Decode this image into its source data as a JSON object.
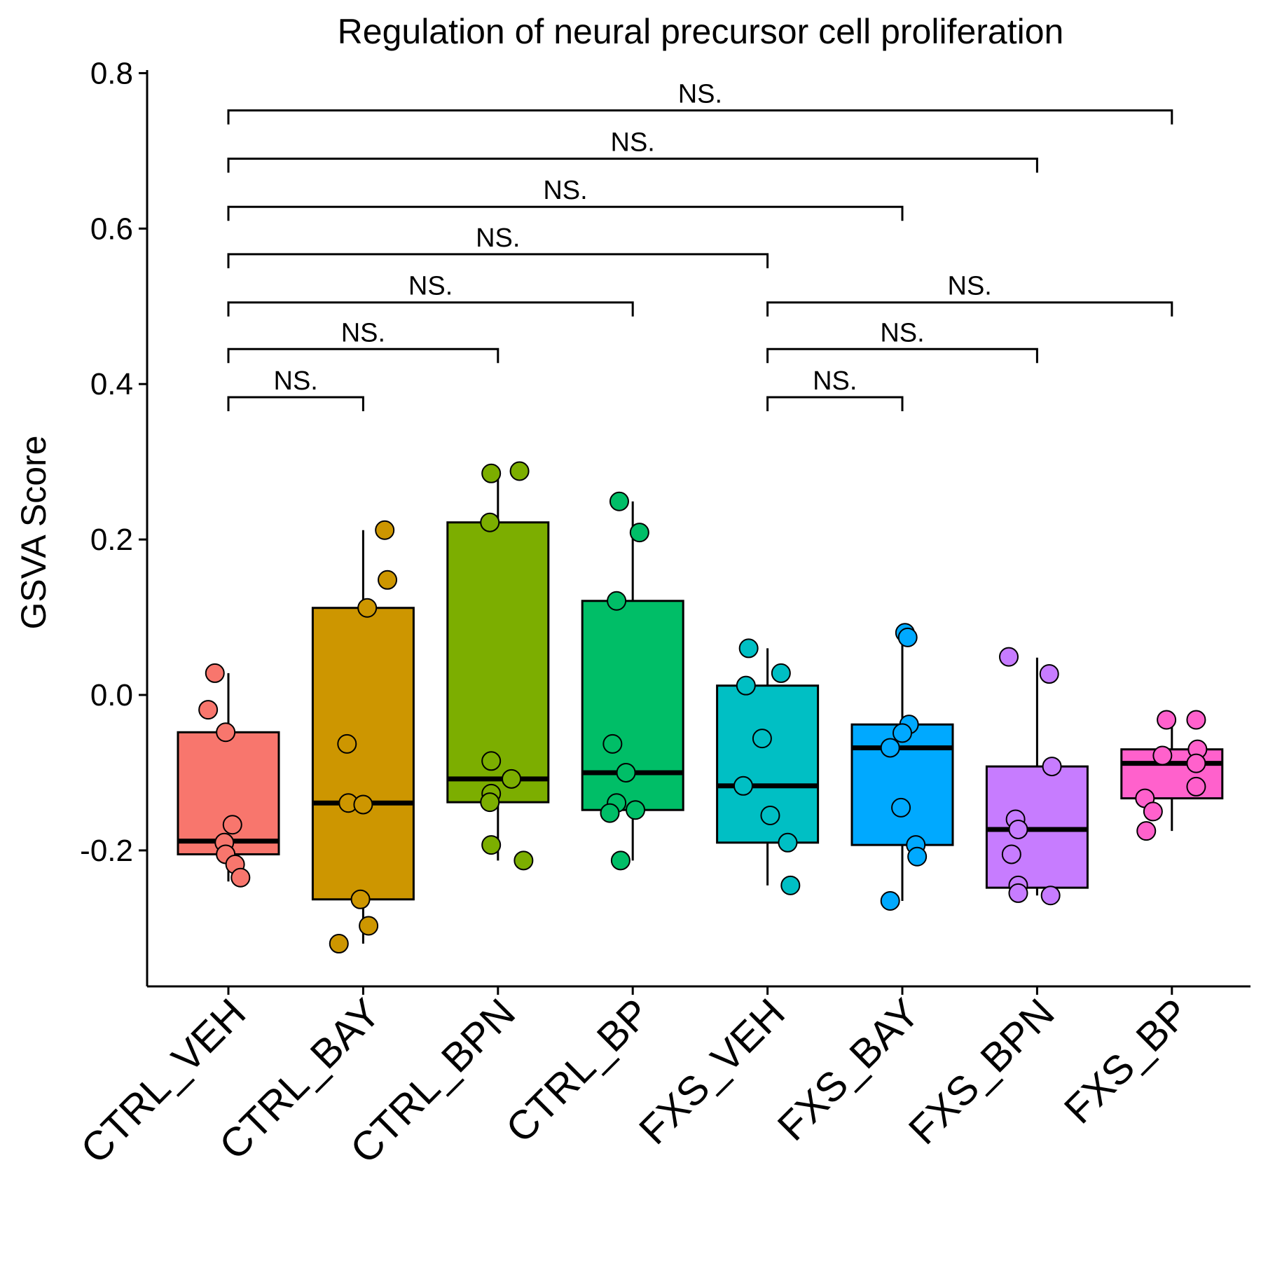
{
  "chart_data": {
    "type": "boxplot",
    "title": "Regulation of neural precursor cell proliferation",
    "xlabel": "",
    "ylabel": "GSVA Score",
    "ylim": [
      -0.37,
      0.8
    ],
    "yticks": [
      -0.2,
      0.0,
      0.2,
      0.4,
      0.6,
      0.8
    ],
    "ytick_labels": [
      "-0.2",
      "0.0",
      "0.2",
      "0.4",
      "0.6",
      "0.8"
    ],
    "grid": false,
    "legend": "none",
    "categories": [
      "CTRL_VEH",
      "CTRL_BAY",
      "CTRL_BPN",
      "CTRL_BP",
      "FXS_VEH",
      "FXS_BAY",
      "FXS_BPN",
      "FXS_BP"
    ],
    "colors": [
      "#F8766D",
      "#CD9600",
      "#7CAE00",
      "#00BE67",
      "#00BFC4",
      "#00A9FF",
      "#C77CFF",
      "#FF61CC"
    ],
    "boxes": [
      {
        "group": "CTRL_VEH",
        "whisker_low": -0.24,
        "q1": -0.205,
        "median": -0.188,
        "q3": -0.048,
        "whisker_high": 0.028
      },
      {
        "group": "CTRL_BAY",
        "whisker_low": -0.32,
        "q1": -0.263,
        "median": -0.139,
        "q3": 0.112,
        "whisker_high": 0.212
      },
      {
        "group": "CTRL_BPN",
        "whisker_low": -0.213,
        "q1": -0.138,
        "median": -0.108,
        "q3": 0.222,
        "whisker_high": 0.288
      },
      {
        "group": "CTRL_BP",
        "whisker_low": -0.213,
        "q1": -0.148,
        "median": -0.1,
        "q3": 0.121,
        "whisker_high": 0.249
      },
      {
        "group": "FXS_VEH",
        "whisker_low": -0.245,
        "q1": -0.19,
        "median": -0.117,
        "q3": 0.012,
        "whisker_high": 0.06
      },
      {
        "group": "FXS_BAY",
        "whisker_low": -0.265,
        "q1": -0.193,
        "median": -0.068,
        "q3": -0.038,
        "whisker_high": 0.078
      },
      {
        "group": "FXS_BPN",
        "whisker_low": -0.258,
        "q1": -0.248,
        "median": -0.173,
        "q3": -0.092,
        "whisker_high": 0.048
      },
      {
        "group": "FXS_BP",
        "whisker_low": -0.175,
        "q1": -0.133,
        "median": -0.088,
        "q3": -0.07,
        "whisker_high": -0.032
      }
    ],
    "points": [
      {
        "group": 0,
        "x": -0.1,
        "y": 0.028
      },
      {
        "group": 0,
        "x": -0.15,
        "y": -0.019
      },
      {
        "group": 0,
        "x": -0.02,
        "y": -0.048
      },
      {
        "group": 0,
        "x": 0.03,
        "y": -0.167
      },
      {
        "group": 0,
        "x": -0.03,
        "y": -0.19
      },
      {
        "group": 0,
        "x": -0.02,
        "y": -0.205
      },
      {
        "group": 0,
        "x": 0.05,
        "y": -0.218
      },
      {
        "group": 0,
        "x": 0.09,
        "y": -0.235
      },
      {
        "group": 1,
        "x": 0.16,
        "y": 0.212
      },
      {
        "group": 1,
        "x": 0.18,
        "y": 0.148
      },
      {
        "group": 1,
        "x": 0.03,
        "y": 0.112
      },
      {
        "group": 1,
        "x": -0.12,
        "y": -0.063
      },
      {
        "group": 1,
        "x": -0.11,
        "y": -0.139
      },
      {
        "group": 1,
        "x": 0.0,
        "y": -0.141
      },
      {
        "group": 1,
        "x": -0.02,
        "y": -0.263
      },
      {
        "group": 1,
        "x": 0.04,
        "y": -0.297
      },
      {
        "group": 1,
        "x": -0.18,
        "y": -0.32
      },
      {
        "group": 2,
        "x": -0.05,
        "y": 0.285
      },
      {
        "group": 2,
        "x": 0.16,
        "y": 0.288
      },
      {
        "group": 2,
        "x": -0.06,
        "y": 0.222
      },
      {
        "group": 2,
        "x": -0.05,
        "y": -0.085
      },
      {
        "group": 2,
        "x": 0.1,
        "y": -0.108
      },
      {
        "group": 2,
        "x": -0.05,
        "y": -0.127
      },
      {
        "group": 2,
        "x": -0.06,
        "y": -0.138
      },
      {
        "group": 2,
        "x": -0.05,
        "y": -0.193
      },
      {
        "group": 2,
        "x": 0.19,
        "y": -0.213
      },
      {
        "group": 3,
        "x": -0.1,
        "y": 0.249
      },
      {
        "group": 3,
        "x": 0.05,
        "y": 0.209
      },
      {
        "group": 3,
        "x": -0.12,
        "y": 0.121
      },
      {
        "group": 3,
        "x": -0.15,
        "y": -0.063
      },
      {
        "group": 3,
        "x": -0.05,
        "y": -0.1
      },
      {
        "group": 3,
        "x": -0.12,
        "y": -0.139
      },
      {
        "group": 3,
        "x": 0.02,
        "y": -0.148
      },
      {
        "group": 3,
        "x": -0.17,
        "y": -0.152
      },
      {
        "group": 3,
        "x": -0.09,
        "y": -0.213
      },
      {
        "group": 4,
        "x": -0.14,
        "y": 0.06
      },
      {
        "group": 4,
        "x": 0.1,
        "y": 0.028
      },
      {
        "group": 4,
        "x": -0.16,
        "y": 0.012
      },
      {
        "group": 4,
        "x": -0.04,
        "y": -0.056
      },
      {
        "group": 4,
        "x": -0.18,
        "y": -0.117
      },
      {
        "group": 4,
        "x": 0.02,
        "y": -0.155
      },
      {
        "group": 4,
        "x": 0.15,
        "y": -0.19
      },
      {
        "group": 4,
        "x": 0.17,
        "y": -0.245
      },
      {
        "group": 5,
        "x": 0.02,
        "y": 0.08
      },
      {
        "group": 5,
        "x": 0.04,
        "y": 0.074
      },
      {
        "group": 5,
        "x": 0.05,
        "y": -0.038
      },
      {
        "group": 5,
        "x": 0.0,
        "y": -0.049
      },
      {
        "group": 5,
        "x": -0.09,
        "y": -0.068
      },
      {
        "group": 5,
        "x": -0.01,
        "y": -0.145
      },
      {
        "group": 5,
        "x": 0.1,
        "y": -0.193
      },
      {
        "group": 5,
        "x": 0.11,
        "y": -0.208
      },
      {
        "group": 5,
        "x": -0.09,
        "y": -0.265
      },
      {
        "group": 6,
        "x": -0.21,
        "y": 0.049
      },
      {
        "group": 6,
        "x": 0.09,
        "y": 0.027
      },
      {
        "group": 6,
        "x": 0.11,
        "y": -0.092
      },
      {
        "group": 6,
        "x": -0.16,
        "y": -0.16
      },
      {
        "group": 6,
        "x": -0.14,
        "y": -0.173
      },
      {
        "group": 6,
        "x": -0.19,
        "y": -0.205
      },
      {
        "group": 6,
        "x": -0.14,
        "y": -0.245
      },
      {
        "group": 6,
        "x": -0.14,
        "y": -0.255
      },
      {
        "group": 6,
        "x": 0.1,
        "y": -0.258
      },
      {
        "group": 7,
        "x": -0.04,
        "y": -0.032
      },
      {
        "group": 7,
        "x": 0.18,
        "y": -0.032
      },
      {
        "group": 7,
        "x": 0.19,
        "y": -0.07
      },
      {
        "group": 7,
        "x": -0.07,
        "y": -0.078
      },
      {
        "group": 7,
        "x": 0.18,
        "y": -0.088
      },
      {
        "group": 7,
        "x": 0.18,
        "y": -0.118
      },
      {
        "group": 7,
        "x": -0.2,
        "y": -0.133
      },
      {
        "group": 7,
        "x": -0.14,
        "y": -0.15
      },
      {
        "group": 7,
        "x": -0.19,
        "y": -0.175
      }
    ],
    "comparisons": [
      {
        "from": 0,
        "to": 1,
        "y": 0.383,
        "label": "NS."
      },
      {
        "from": 0,
        "to": 2,
        "y": 0.445,
        "label": "NS."
      },
      {
        "from": 0,
        "to": 3,
        "y": 0.505,
        "label": "NS."
      },
      {
        "from": 0,
        "to": 4,
        "y": 0.567,
        "label": "NS."
      },
      {
        "from": 0,
        "to": 5,
        "y": 0.628,
        "label": "NS."
      },
      {
        "from": 0,
        "to": 6,
        "y": 0.69,
        "label": "NS."
      },
      {
        "from": 0,
        "to": 7,
        "y": 0.752,
        "label": "NS."
      },
      {
        "from": 4,
        "to": 5,
        "y": 0.383,
        "label": "NS."
      },
      {
        "from": 4,
        "to": 6,
        "y": 0.445,
        "label": "NS."
      },
      {
        "from": 4,
        "to": 7,
        "y": 0.505,
        "label": "NS."
      }
    ]
  }
}
